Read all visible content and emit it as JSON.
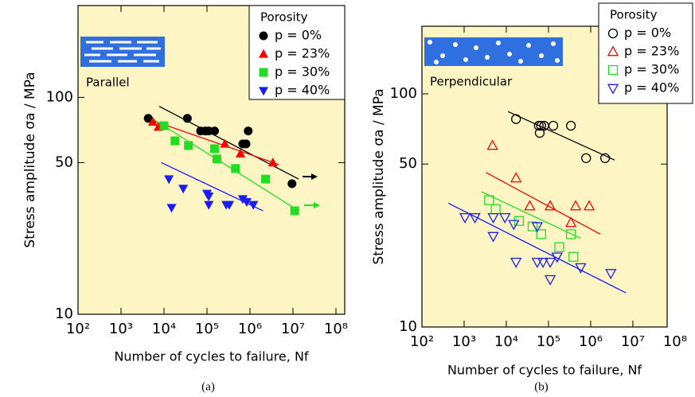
{
  "chart_data": [
    {
      "type": "scatter",
      "caption": "(a)",
      "annotation": "Parallel",
      "xlabel": "Number of cycles to failure, Nf",
      "ylabel": "Stress amplitude σa / MPa",
      "log_x": true,
      "log_y": true,
      "xlim": [
        100,
        160000000
      ],
      "ylim": [
        10,
        265
      ],
      "xticks": [
        {
          "value": 100,
          "label": "10²"
        },
        {
          "value": 1000,
          "label": "10³"
        },
        {
          "value": 10000,
          "label": "10⁴"
        },
        {
          "value": 100000,
          "label": "10⁵"
        },
        {
          "value": 1000000,
          "label": "10⁶"
        },
        {
          "value": 10000000,
          "label": "10⁷"
        },
        {
          "value": 100000000,
          "label": "10⁸"
        }
      ],
      "yticks": [
        10,
        50,
        100
      ],
      "legend": {
        "title": "Porosity",
        "position": "upper right"
      },
      "marker_fill": "filled",
      "series": [
        {
          "name": "p = 0%",
          "color": "#000000",
          "marker": "circle",
          "x": [
            4300,
            35000,
            71000,
            91000,
            110000,
            150000,
            680000,
            810000,
            910000,
            9500000
          ],
          "values": [
            80,
            80,
            70,
            70,
            70,
            70,
            61,
            61,
            70,
            40
          ]
        },
        {
          "name": "p = 23%",
          "color": "#ff0000",
          "marker": "triangle",
          "x": [
            5500,
            7400,
            260000,
            600000,
            3400000
          ],
          "values": [
            77,
            73,
            61,
            55,
            50
          ]
        },
        {
          "name": "p = 30%",
          "color": "#22dd22",
          "marker": "square",
          "x": [
            10000,
            18000,
            37000,
            150000,
            170000,
            460000,
            2300000,
            11000000
          ],
          "values": [
            74,
            63,
            60,
            58,
            52,
            47,
            42,
            30
          ]
        },
        {
          "name": "p = 40%",
          "color": "#1a1aff",
          "marker": "triangle-down",
          "x": [
            13000,
            28000,
            15000,
            100000,
            110000,
            110000,
            280000,
            330000,
            680000,
            840000,
            1200000
          ],
          "values": [
            42,
            38,
            31,
            36,
            35,
            32,
            32,
            32,
            34,
            33,
            32
          ]
        }
      ],
      "fits": [
        {
          "color": "#000000",
          "x": [
            7700,
            13500000
          ],
          "values": [
            91,
            42
          ]
        },
        {
          "color": "#ff0000",
          "x": [
            5500,
            4700000
          ],
          "values": [
            78,
            49
          ]
        },
        {
          "color": "#22dd22",
          "x": [
            5800,
            13500000
          ],
          "values": [
            79,
            30
          ]
        },
        {
          "color": "#1a1aff",
          "x": [
            8700,
            2000000
          ],
          "values": [
            50,
            30
          ]
        }
      ]
    },
    {
      "type": "scatter",
      "caption": "(b)",
      "annotation": "Perpendicular",
      "xlabel": "Number of cycles to failure, Nf",
      "ylabel": "Stress amplitude σa / MPa",
      "log_x": true,
      "log_y": true,
      "xlim": [
        100,
        65000000
      ],
      "ylim": [
        10,
        195
      ],
      "xticks": [
        {
          "value": 100,
          "label": "10²"
        },
        {
          "value": 1000,
          "label": "10³"
        },
        {
          "value": 10000,
          "label": "10⁴"
        },
        {
          "value": 100000,
          "label": "10⁵"
        },
        {
          "value": 1000000,
          "label": "10⁶"
        },
        {
          "value": 10000000,
          "label": "10⁷"
        },
        {
          "value": 100000000,
          "label": "10⁸"
        }
      ],
      "yticks": [
        10,
        50,
        100
      ],
      "legend": {
        "title": "Porosity",
        "position": "upper right"
      },
      "marker_fill": "hollow",
      "series": [
        {
          "name": "p = 0%",
          "color": "#000000",
          "marker": "circle",
          "x": [
            17000,
            59000,
            67000,
            79000,
            130000,
            340000,
            62000,
            780000,
            2200000
          ],
          "values": [
            78,
            73,
            73,
            73,
            73,
            73,
            68,
            53,
            53
          ]
        },
        {
          "name": "p = 23%",
          "color": "#ff0000",
          "marker": "triangle",
          "x": [
            4700,
            17000,
            36000,
            110000,
            340000,
            440000,
            920000
          ],
          "values": [
            60,
            43.5,
            33,
            33,
            28,
            33,
            33
          ]
        },
        {
          "name": "p = 30%",
          "color": "#22dd22",
          "marker": "square",
          "x": [
            3900,
            5600,
            20000,
            42000,
            67000,
            180000,
            340000,
            390000
          ],
          "values": [
            35,
            32,
            28.5,
            27,
            25,
            22,
            25,
            20
          ]
        },
        {
          "name": "p = 40%",
          "color": "#1a1aff",
          "marker": "triangle-down",
          "x": [
            1050,
            1800,
            4900,
            4900,
            9300,
            15000,
            54000,
            17000,
            54000,
            74000,
            110000,
            160000,
            110000,
            580000,
            3000000
          ],
          "values": [
            29.5,
            29.5,
            24.5,
            29.5,
            29.5,
            27.6,
            27,
            19,
            19,
            19,
            19,
            20,
            16,
            18,
            17
          ]
        }
      ],
      "fits": [
        {
          "color": "#000000",
          "x": [
            11000,
            3700000
          ],
          "values": [
            84,
            52
          ]
        },
        {
          "color": "#ff0000",
          "x": [
            3300,
            1700000
          ],
          "values": [
            46,
            25
          ]
        },
        {
          "color": "#22dd22",
          "x": [
            2600,
            580000
          ],
          "values": [
            38,
            24
          ]
        },
        {
          "color": "#1a1aff",
          "x": [
            420,
            6900000
          ],
          "values": [
            34,
            14
          ]
        }
      ]
    }
  ]
}
